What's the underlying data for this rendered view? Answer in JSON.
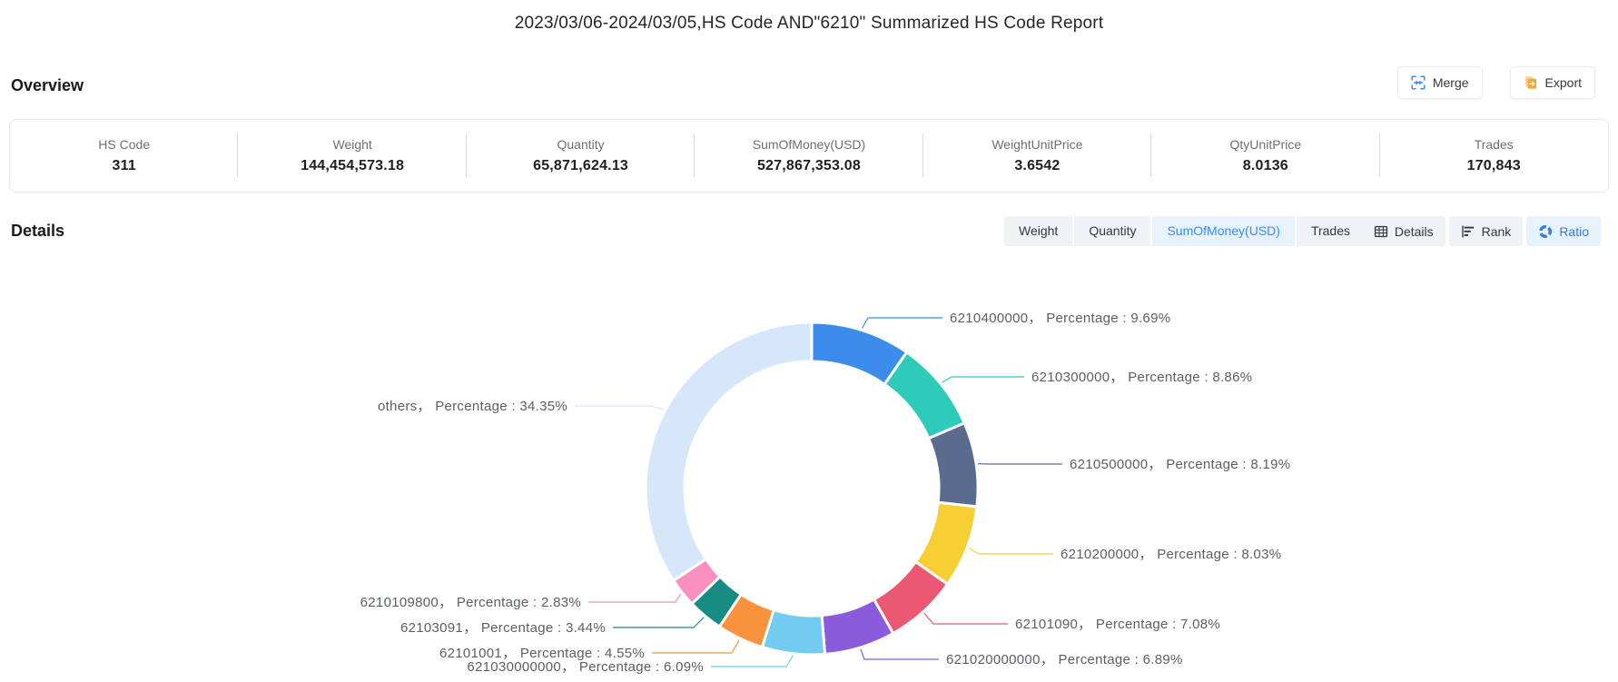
{
  "header": {
    "title": "2023/03/06-2024/03/05,HS Code AND\"6210\" Summarized HS Code Report"
  },
  "overview": {
    "heading": "Overview",
    "merge_label": "Merge",
    "export_label": "Export",
    "stats": [
      {
        "label": "HS Code",
        "value": "311"
      },
      {
        "label": "Weight",
        "value": "144,454,573.18"
      },
      {
        "label": "Quantity",
        "value": "65,871,624.13"
      },
      {
        "label": "SumOfMoney(USD)",
        "value": "527,867,353.08"
      },
      {
        "label": "WeightUnitPrice",
        "value": "3.6542"
      },
      {
        "label": "QtyUnitPrice",
        "value": "8.0136"
      },
      {
        "label": "Trades",
        "value": "170,843"
      }
    ]
  },
  "details": {
    "heading": "Details",
    "metric_tabs": [
      {
        "label": "Weight",
        "selected": false
      },
      {
        "label": "Quantity",
        "selected": false
      },
      {
        "label": "SumOfMoney(USD)",
        "selected": true
      },
      {
        "label": "Trades",
        "selected": false
      }
    ],
    "view_tabs": [
      {
        "label": "Details",
        "selected": false
      },
      {
        "label": "Rank",
        "selected": false
      },
      {
        "label": "Ratio",
        "selected": true
      }
    ]
  },
  "chart_data": {
    "type": "pie",
    "subtype": "donut",
    "metric": "SumOfMoney(USD)",
    "label_prefix": "Percentage",
    "direction": "clockwise",
    "start_angle": "12-o-clock",
    "legend": "none",
    "segments": [
      {
        "name": "6210400000",
        "value": 9.69,
        "color": "#3c8ceb"
      },
      {
        "name": "6210300000",
        "value": 8.86,
        "color": "#2fcbba"
      },
      {
        "name": "6210500000",
        "value": 8.19,
        "color": "#5a6b8e"
      },
      {
        "name": "6210200000",
        "value": 8.03,
        "color": "#f6cf35"
      },
      {
        "name": "62101090",
        "value": 7.08,
        "color": "#eb5872"
      },
      {
        "name": "621020000000",
        "value": 6.89,
        "color": "#8a5cdb"
      },
      {
        "name": "621030000000",
        "value": 6.09,
        "color": "#72ccef"
      },
      {
        "name": "62101001",
        "value": 4.55,
        "color": "#f8923d"
      },
      {
        "name": "62103091",
        "value": 3.44,
        "color": "#178c82"
      },
      {
        "name": "6210109800",
        "value": 2.83,
        "color": "#f98fbe"
      },
      {
        "name": "others",
        "value": 34.35,
        "color": "#d7e7fa"
      }
    ]
  },
  "colors": {
    "accent": "#3d8af0",
    "tab_active_bg": "#e7f2fd",
    "tab_bg": "#f1f2f5",
    "label_text": "#5a5f66",
    "merge_icon": "#3d8af0",
    "export_icon": "#f5a93b"
  }
}
